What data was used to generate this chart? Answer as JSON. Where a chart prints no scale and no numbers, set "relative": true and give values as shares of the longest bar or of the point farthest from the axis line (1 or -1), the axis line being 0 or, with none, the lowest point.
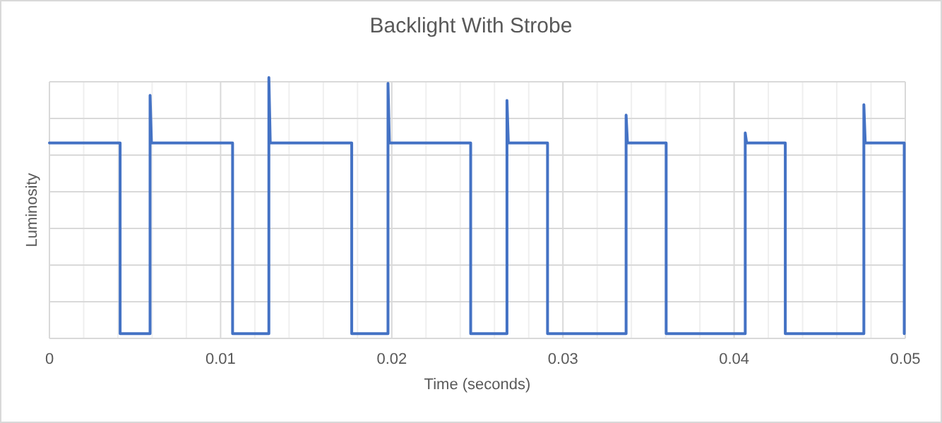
{
  "chart_data": {
    "type": "line",
    "title": "Backlight With Strobe",
    "xlabel": "Time (seconds)",
    "ylabel": "Luminosity",
    "relative": true,
    "grid": true,
    "marker": "none",
    "line_style": "solid",
    "xlim": [
      0,
      0.05
    ],
    "xticks": [
      0,
      {
        "value": 0.002,
        "label": null
      },
      {
        "value": 0.004,
        "label": null
      },
      {
        "value": 0.006,
        "label": null
      },
      {
        "value": 0.008,
        "label": null
      },
      0.01,
      {
        "value": 0.012,
        "label": null
      },
      {
        "value": 0.014,
        "label": null
      },
      {
        "value": 0.016,
        "label": null
      },
      {
        "value": 0.018,
        "label": null
      },
      0.02,
      {
        "value": 0.022,
        "label": null
      },
      {
        "value": 0.024,
        "label": null
      },
      {
        "value": 0.026,
        "label": null
      },
      {
        "value": 0.028,
        "label": null
      },
      0.03,
      {
        "value": 0.032,
        "label": null
      },
      {
        "value": 0.034,
        "label": null
      },
      {
        "value": 0.036,
        "label": null
      },
      {
        "value": 0.038,
        "label": null
      },
      0.04,
      {
        "value": 0.042,
        "label": null
      },
      {
        "value": 0.044,
        "label": null
      },
      {
        "value": 0.046,
        "label": null
      },
      {
        "value": 0.048,
        "label": null
      },
      0.05
    ],
    "series": [
      {
        "color": "#4472c4",
        "x": [
          0,
          0.00413,
          0.00413,
          0.00588,
          0.00588,
          0.00596,
          0.0107,
          0.0107,
          0.01282,
          0.01282,
          0.0129,
          0.01766,
          0.01766,
          0.01978,
          0.01978,
          0.01986,
          0.02461,
          0.02461,
          0.02673,
          0.02673,
          0.02681,
          0.0291,
          0.0291,
          0.03369,
          0.03369,
          0.03377,
          0.03603,
          0.03603,
          0.04065,
          0.04065,
          0.04073,
          0.04299,
          0.04299,
          0.04758,
          0.04758,
          0.04766,
          0.04994,
          0.04994
        ],
        "values": [
          0.749,
          0.749,
          0.018,
          0.018,
          0.932,
          0.749,
          0.749,
          0.018,
          0.018,
          1,
          0.749,
          0.749,
          0.018,
          0.018,
          0.978,
          0.749,
          0.749,
          0.018,
          0.018,
          0.912,
          0.749,
          0.749,
          0.018,
          0.018,
          0.856,
          0.749,
          0.749,
          0.018,
          0.018,
          0.788,
          0.749,
          0.749,
          0.018,
          0.018,
          0.896,
          0.749,
          0.749,
          0.018
        ]
      }
    ]
  }
}
